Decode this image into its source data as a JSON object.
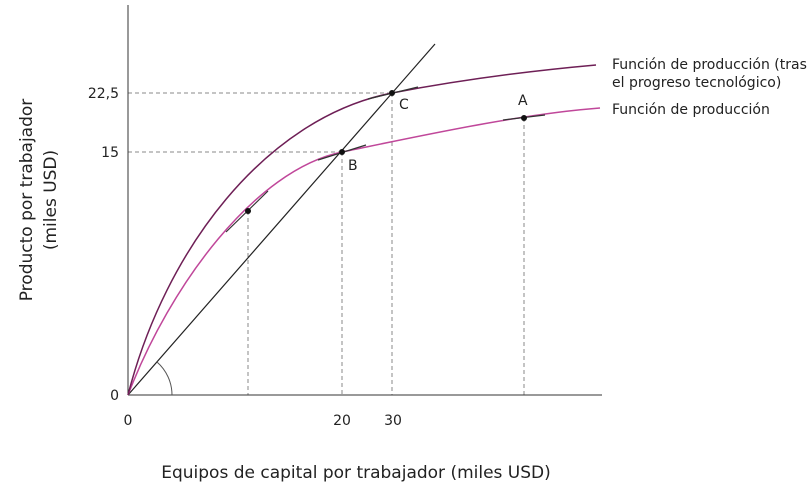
{
  "axes": {
    "y_title_line1": "Producto por trabajador",
    "y_title_line2": "(miles USD)",
    "x_title": "Equipos de capital por trabajador (miles USD)",
    "y_labels": [
      "22,5",
      "15",
      "0"
    ],
    "x_labels": [
      "0",
      "20",
      "30"
    ]
  },
  "curves": {
    "upper_label_line1": "Función de producción (tras",
    "upper_label_line2": "el progreso tecnológico)",
    "lower_label": "Función de producción"
  },
  "points": {
    "a": "A",
    "b": "B",
    "c": "C"
  }
}
